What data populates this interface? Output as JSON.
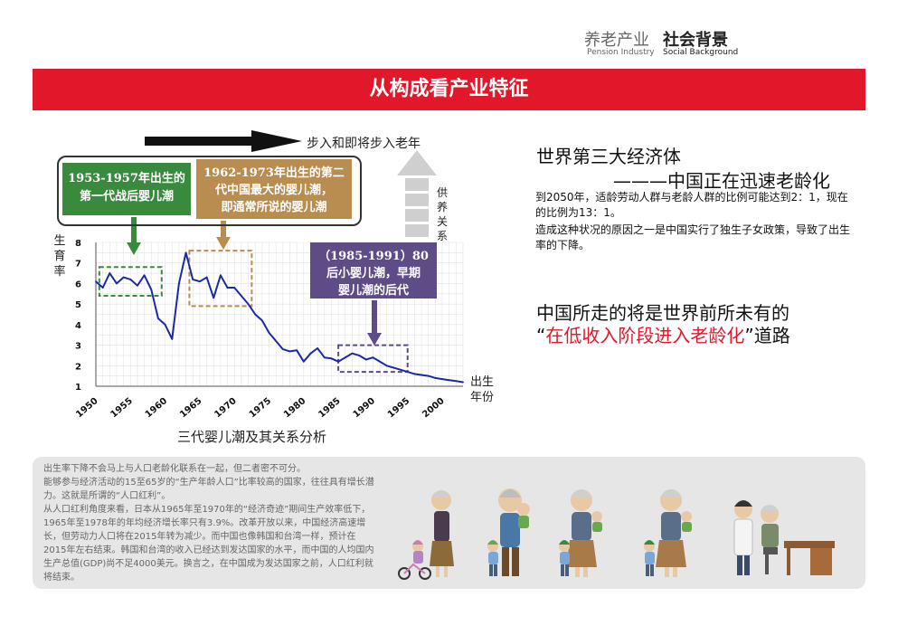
{
  "header": {
    "category_cn": "养老产业",
    "category_en": "Pension Industry",
    "section_cn": "社会背景",
    "section_en": "Social Background"
  },
  "banner": {
    "title": "从构成看产业特征"
  },
  "timeline": {
    "arrow_label": "步入和即将步入老年"
  },
  "generations": [
    {
      "lines": [
        "1953-1957年出生的",
        "第一代战后婴儿潮"
      ],
      "color": "#3a8a3d"
    },
    {
      "lines": [
        "1962-1973年出生的第二",
        "代中国最大的婴儿潮，",
        "即通常所说的婴儿潮"
      ],
      "color": "#b88d4f"
    },
    {
      "lines": [
        "（1985-1991）80",
        "后小婴儿潮，早期",
        "婴儿潮的后代"
      ],
      "color": "#5e4c86"
    }
  ],
  "support": {
    "label": "供养关系"
  },
  "chart_data": {
    "type": "line",
    "title": "三代婴儿潮及其关系分析",
    "ylabel": "生育率",
    "xlabel": "出生年份",
    "ylim": [
      1,
      8
    ],
    "xlim": [
      1950,
      2003
    ],
    "yticks": [
      1,
      2,
      3,
      4,
      5,
      6,
      7,
      8
    ],
    "xticks": [
      1950,
      1955,
      1960,
      1965,
      1970,
      1975,
      1980,
      1985,
      1990,
      1995,
      2000
    ],
    "grid": true,
    "line_color": "#1a2aa6",
    "series": [
      {
        "x": [
          1950,
          1951,
          1952,
          1953,
          1954,
          1955,
          1956,
          1957,
          1958,
          1959,
          1960,
          1961,
          1962,
          1963,
          1964,
          1965,
          1966,
          1967,
          1968,
          1969,
          1970,
          1971,
          1972,
          1973,
          1974,
          1975,
          1976,
          1977,
          1978,
          1979,
          1980,
          1981,
          1982,
          1983,
          1984,
          1985,
          1986,
          1987,
          1988,
          1989,
          1990,
          1991,
          1992,
          1993,
          1994,
          1995,
          1996,
          1997,
          1998,
          1999,
          2000,
          2001,
          2002,
          2003
        ],
        "y": [
          6.1,
          5.8,
          6.5,
          6.0,
          6.3,
          6.2,
          5.9,
          6.4,
          5.7,
          4.3,
          4.0,
          3.3,
          6.0,
          7.5,
          6.2,
          6.1,
          6.3,
          5.3,
          6.4,
          5.8,
          5.8,
          5.4,
          5.0,
          4.5,
          4.2,
          3.6,
          3.2,
          2.8,
          2.7,
          2.75,
          2.2,
          2.6,
          2.85,
          2.4,
          2.35,
          2.2,
          2.4,
          2.6,
          2.5,
          2.3,
          2.4,
          2.2,
          2.0,
          1.9,
          1.8,
          1.7,
          1.6,
          1.55,
          1.5,
          1.4,
          1.35,
          1.3,
          1.25,
          1.2
        ]
      }
    ],
    "highlight_ranges": [
      {
        "x": [
          1950.5,
          1959.5
        ],
        "y": [
          5.4,
          6.8
        ],
        "color": "#3a8a3d"
      },
      {
        "x": [
          1963.5,
          1972.5
        ],
        "y": [
          4.9,
          7.6
        ],
        "color": "#b88d4f"
      },
      {
        "x": [
          1985,
          1995
        ],
        "y": [
          1.7,
          3.0
        ],
        "color": "#5e4c86"
      }
    ]
  },
  "right": {
    "title": "世界第三大经济体",
    "subtitle": "———中国正在迅速老龄化",
    "para1": "到2050年，适龄劳动人群与老龄人群的比例可能达到2：1，现在的比例为13：1。",
    "para2": "造成这种状况的原因之一是中国实行了独生子女政策，导致了出生率的下降。",
    "path_line1": "中国所走的将是世界前所未有的",
    "path_open": "“",
    "path_red": "在低收入阶段进入老龄化",
    "path_close": "”道路"
  },
  "info": {
    "p1": "出生率下降不会马上与人口老龄化联系在一起，但二者密不可分。",
    "p2": "能够参与经济活动的15至65岁的“生产年龄人口”比率较高的国家，往往具有增长潜力。这就是所谓的“人口红利”。",
    "p3": "从人口红利角度来看，日本从1965年至1970年的“经济奇迹”期间生产效率低下，1965年至1978年的年均经济增长率只有3.9%。改革开放以来，中国经济高速增长，但劳动力人口将在2015年转为减少。而中国也像韩国和台湾一样，预计在2015年左右结束。韩国和台湾的收入已经达到发达国家的水平，而中国的人均国内生产总值(GDP)尚不足4000美元。换言之，在中国成为发达国家之前，人口红利就将结束。"
  }
}
